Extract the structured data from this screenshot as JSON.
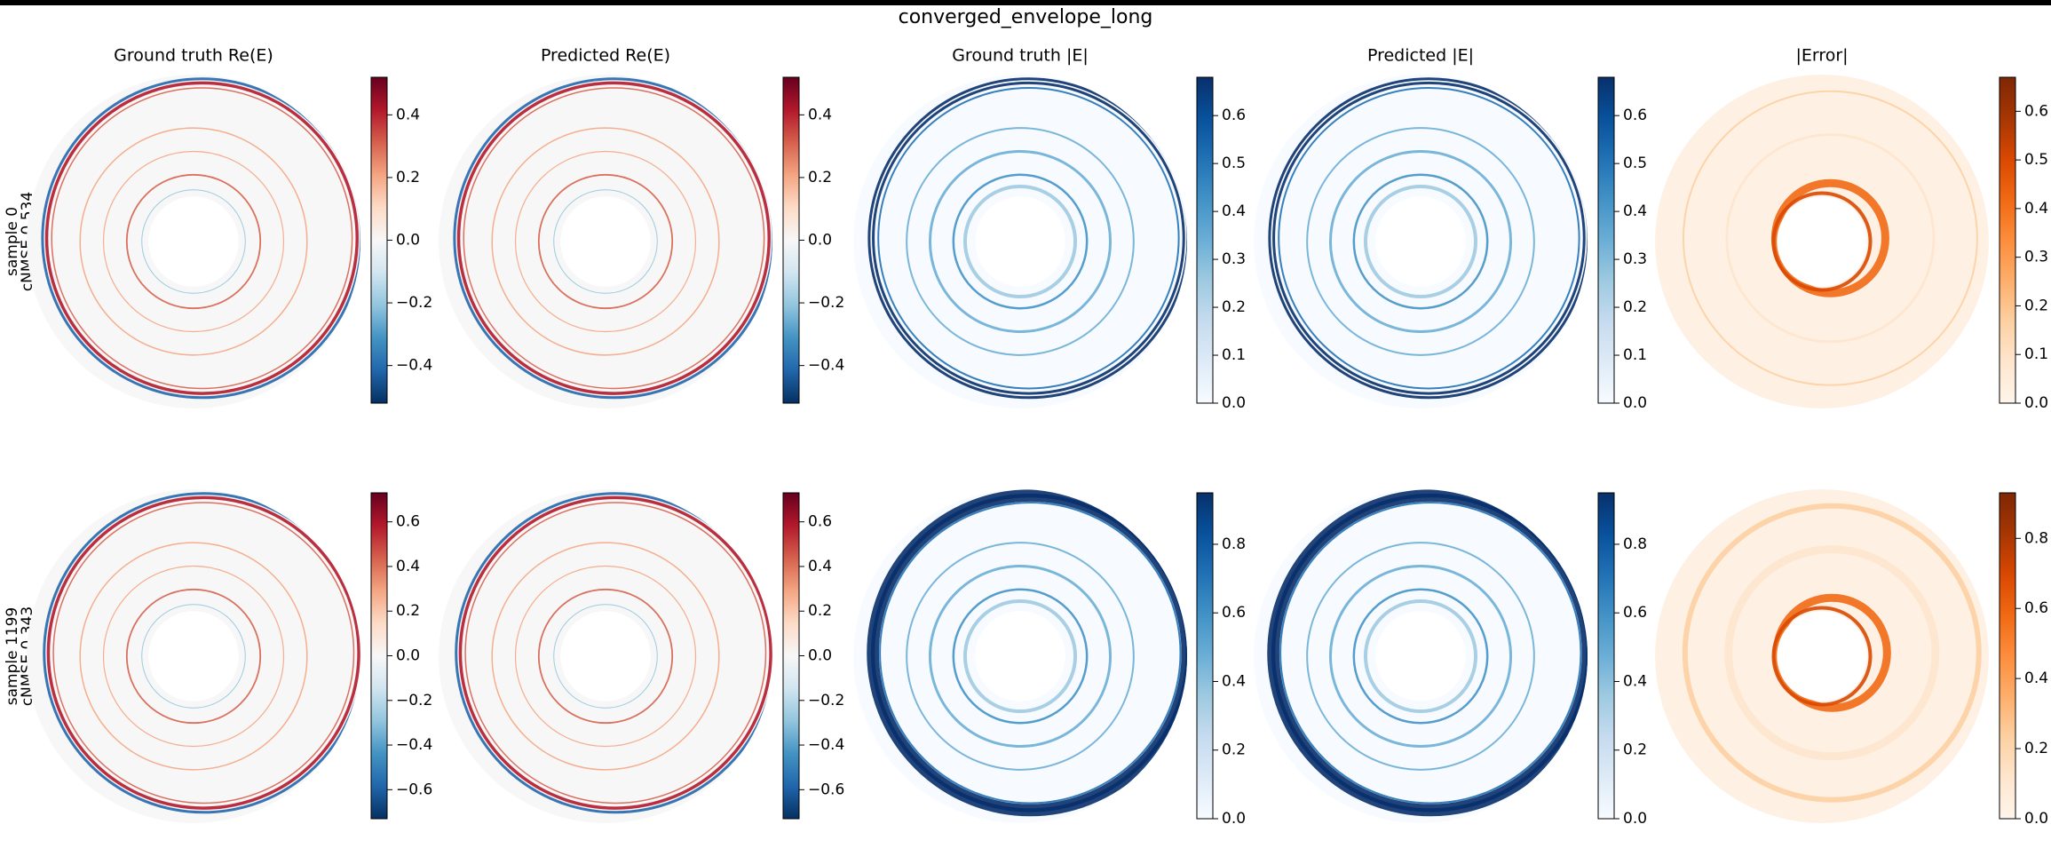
{
  "title": "converged_envelope_long",
  "row_labels": [
    [
      "sample 0",
      "cNMSE 0.534"
    ],
    [
      "sample 1199",
      "cNMSE 0.343"
    ]
  ],
  "chart_data": [
    {
      "type": "heatmap",
      "title": "Ground truth  Re(E)",
      "clim": [
        -0.52,
        0.52
      ],
      "cticks": [
        {
          "value": -0.4,
          "label": "−0.4"
        },
        {
          "value": -0.2,
          "label": "−0.2"
        },
        {
          "value": 0,
          "label": "0.0"
        },
        0.2,
        0.4
      ],
      "cmap": [
        "#053061",
        "#2166ac",
        "#4393c3",
        "#92c5de",
        "#d1e5f0",
        "#f7f7f7",
        "#fddbc7",
        "#f4a582",
        "#d6604d",
        "#b2182b",
        "#67001f"
      ]
    },
    {
      "type": "heatmap",
      "title": "Predicted  Re(E)",
      "clim": [
        -0.52,
        0.52
      ],
      "cticks": [
        {
          "value": -0.4,
          "label": "−0.4"
        },
        {
          "value": -0.2,
          "label": "−0.2"
        },
        {
          "value": 0,
          "label": "0.0"
        },
        0.2,
        0.4
      ],
      "cmap": [
        "#053061",
        "#2166ac",
        "#4393c3",
        "#92c5de",
        "#d1e5f0",
        "#f7f7f7",
        "#fddbc7",
        "#f4a582",
        "#d6604d",
        "#b2182b",
        "#67001f"
      ]
    },
    {
      "type": "heatmap",
      "title": "Ground truth  |E|",
      "clim": [
        0,
        0.68
      ],
      "cticks": [
        {
          "value": 0,
          "label": "0.0"
        },
        0.1,
        0.2,
        0.3,
        0.4,
        0.5,
        0.6
      ],
      "cmap": [
        "#f7fbff",
        "#deebf7",
        "#c6dbef",
        "#9ecae1",
        "#6baed6",
        "#4292c6",
        "#2171b5",
        "#08519c",
        "#08306b"
      ]
    },
    {
      "type": "heatmap",
      "title": "Predicted  |E|",
      "clim": [
        0,
        0.68
      ],
      "cticks": [
        {
          "value": 0,
          "label": "0.0"
        },
        0.1,
        0.2,
        0.3,
        0.4,
        0.5,
        0.6
      ],
      "cmap": [
        "#f7fbff",
        "#deebf7",
        "#c6dbef",
        "#9ecae1",
        "#6baed6",
        "#4292c6",
        "#2171b5",
        "#08519c",
        "#08306b"
      ]
    },
    {
      "type": "heatmap",
      "title": "|Error|",
      "clim": [
        0,
        0.67
      ],
      "cticks": [
        {
          "value": 0,
          "label": "0.0"
        },
        0.1,
        0.2,
        0.3,
        0.4,
        0.5,
        0.6
      ],
      "cmap": [
        "#fff5eb",
        "#fee6ce",
        "#fdd0a2",
        "#fdae6b",
        "#fd8d3c",
        "#f16913",
        "#d94801",
        "#a63603",
        "#7f2704"
      ]
    },
    {
      "type": "heatmap",
      "clim": [
        -0.73,
        0.73
      ],
      "cticks": [
        {
          "value": -0.6,
          "label": "−0.6"
        },
        {
          "value": -0.4,
          "label": "−0.4"
        },
        {
          "value": -0.2,
          "label": "−0.2"
        },
        {
          "value": 0,
          "label": "0.0"
        },
        0.2,
        0.4,
        0.6
      ],
      "cmap": [
        "#053061",
        "#2166ac",
        "#4393c3",
        "#92c5de",
        "#d1e5f0",
        "#f7f7f7",
        "#fddbc7",
        "#f4a582",
        "#d6604d",
        "#b2182b",
        "#67001f"
      ]
    },
    {
      "type": "heatmap",
      "clim": [
        -0.73,
        0.73
      ],
      "cticks": [
        {
          "value": -0.6,
          "label": "−0.6"
        },
        {
          "value": -0.4,
          "label": "−0.4"
        },
        {
          "value": -0.2,
          "label": "−0.2"
        },
        {
          "value": 0,
          "label": "0.0"
        },
        0.2,
        0.4,
        0.6
      ],
      "cmap": [
        "#053061",
        "#2166ac",
        "#4393c3",
        "#92c5de",
        "#d1e5f0",
        "#f7f7f7",
        "#fddbc7",
        "#f4a582",
        "#d6604d",
        "#b2182b",
        "#67001f"
      ]
    },
    {
      "type": "heatmap",
      "clim": [
        0,
        0.95
      ],
      "cticks": [
        {
          "value": 0,
          "label": "0.0"
        },
        0.2,
        0.4,
        0.6,
        0.8
      ],
      "cmap": [
        "#f7fbff",
        "#deebf7",
        "#c6dbef",
        "#9ecae1",
        "#6baed6",
        "#4292c6",
        "#2171b5",
        "#08519c",
        "#08306b"
      ]
    },
    {
      "type": "heatmap",
      "clim": [
        0,
        0.95
      ],
      "cticks": [
        {
          "value": 0,
          "label": "0.0"
        },
        0.2,
        0.4,
        0.6,
        0.8
      ],
      "cmap": [
        "#f7fbff",
        "#deebf7",
        "#c6dbef",
        "#9ecae1",
        "#6baed6",
        "#4292c6",
        "#2171b5",
        "#08519c",
        "#08306b"
      ]
    },
    {
      "type": "heatmap",
      "clim": [
        0,
        0.93
      ],
      "cticks": [
        {
          "value": 0,
          "label": "0.0"
        },
        0.2,
        0.4,
        0.6,
        0.8
      ],
      "cmap": [
        "#fff5eb",
        "#fee6ce",
        "#fdd0a2",
        "#fdae6b",
        "#fd8d3c",
        "#f16913",
        "#d94801",
        "#a63603",
        "#7f2704"
      ]
    }
  ]
}
